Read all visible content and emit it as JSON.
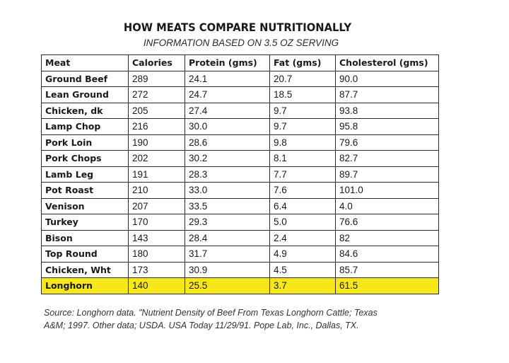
{
  "title": "HOW MEATS COMPARE NUTRITIONALLY",
  "subtitle": "INFORMATION BASED ON 3.5 OZ SERVING",
  "table": {
    "headers": [
      "Meat",
      "Calories",
      "Protein (gms)",
      "Fat (gms)",
      "Cholesterol (gms)"
    ],
    "rows": [
      {
        "meat": "Ground Beef",
        "calories": "289",
        "protein": "24.1",
        "fat": "20.7",
        "cholesterol": "90.0"
      },
      {
        "meat": "Lean Ground",
        "calories": "272",
        "protein": "24.7",
        "fat": "18.5",
        "cholesterol": "87.7"
      },
      {
        "meat": "Chicken, dk",
        "calories": "205",
        "protein": "27.4",
        "fat": "9.7",
        "cholesterol": "93.8"
      },
      {
        "meat": "Lamp Chop",
        "calories": "216",
        "protein": "30.0",
        "fat": "9.7",
        "cholesterol": "95.8"
      },
      {
        "meat": "Pork Loin",
        "calories": "190",
        "protein": "28.6",
        "fat": "9.8",
        "cholesterol": "79.6"
      },
      {
        "meat": "Pork Chops",
        "calories": "202",
        "protein": "30.2",
        "fat": "8.1",
        "cholesterol": "82.7"
      },
      {
        "meat": "Lamb Leg",
        "calories": "191",
        "protein": "28.3",
        "fat": "7.7",
        "cholesterol": "89.7"
      },
      {
        "meat": "Pot Roast",
        "calories": "210",
        "protein": "33.0",
        "fat": "7.6",
        "cholesterol": "101.0"
      },
      {
        "meat": "Venison",
        "calories": "207",
        "protein": "33.5",
        "fat": "6.4",
        "cholesterol": "4.0"
      },
      {
        "meat": "Turkey",
        "calories": "170",
        "protein": "29.3",
        "fat": "5.0",
        "cholesterol": "76.6"
      },
      {
        "meat": "Bison",
        "calories": "143",
        "protein": "28.4",
        "fat": "2.4",
        "cholesterol": "82"
      },
      {
        "meat": "Top Round",
        "calories": "180",
        "protein": "31.7",
        "fat": "4.9",
        "cholesterol": "84.6"
      },
      {
        "meat": "Chicken, Wht",
        "calories": "173",
        "protein": "30.9",
        "fat": "4.5",
        "cholesterol": "85.7"
      },
      {
        "meat": "Longhorn",
        "calories": "140",
        "protein": "25.5",
        "fat": "3.7",
        "cholesterol": "61.5",
        "highlight": true
      }
    ]
  },
  "source_line1": "Source:  Longhorn data.  \"Nutrient Density of Beef From Texas Longhorn Cattle; Texas",
  "source_line2": "A&M; 1997.  Other data; USDA.  USA Today 11/29/91.  Pope Lab, Inc., Dallas, TX.",
  "colors": {
    "highlight": "#f5e718",
    "border": "#2b2b2b"
  }
}
